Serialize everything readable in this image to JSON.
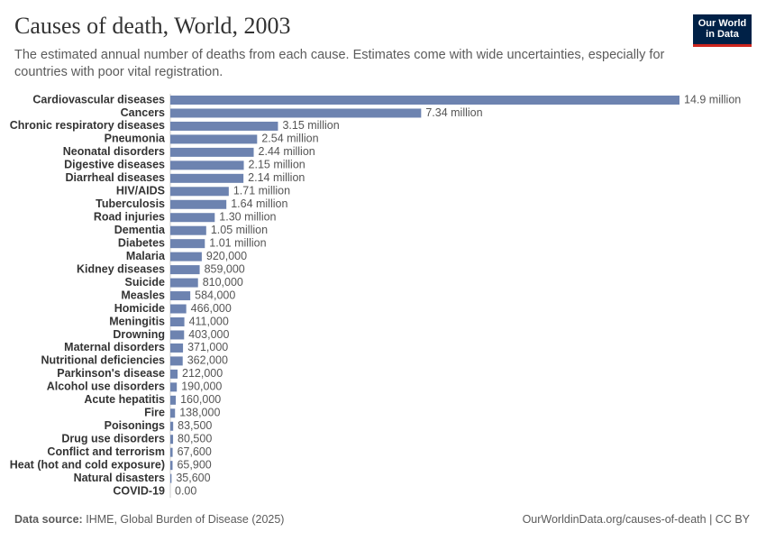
{
  "chart_data": {
    "type": "bar",
    "orientation": "horizontal",
    "title": "Causes of death, World, 2003",
    "subtitle": "The estimated annual number of deaths from each cause. Estimates come with wide uncertainties, especially for countries with poor vital registration.",
    "categories": [
      "Cardiovascular diseases",
      "Cancers",
      "Chronic respiratory diseases",
      "Pneumonia",
      "Neonatal disorders",
      "Digestive diseases",
      "Diarrheal diseases",
      "HIV/AIDS",
      "Tuberculosis",
      "Road injuries",
      "Dementia",
      "Diabetes",
      "Malaria",
      "Kidney diseases",
      "Suicide",
      "Measles",
      "Homicide",
      "Meningitis",
      "Drowning",
      "Maternal disorders",
      "Nutritional deficiencies",
      "Parkinson's disease",
      "Alcohol use disorders",
      "Acute hepatitis",
      "Fire",
      "Poisonings",
      "Drug use disorders",
      "Conflict and terrorism",
      "Heat (hot and cold exposure)",
      "Natural disasters",
      "COVID-19"
    ],
    "values": [
      14900000,
      7340000,
      3150000,
      2540000,
      2440000,
      2150000,
      2140000,
      1710000,
      1640000,
      1300000,
      1050000,
      1010000,
      920000,
      859000,
      810000,
      584000,
      466000,
      411000,
      403000,
      371000,
      362000,
      212000,
      190000,
      160000,
      138000,
      83500,
      80500,
      67600,
      65900,
      35600,
      0
    ],
    "value_labels": [
      "14.9 million",
      "7.34 million",
      "3.15 million",
      "2.54 million",
      "2.44 million",
      "2.15 million",
      "2.14 million",
      "1.71 million",
      "1.64 million",
      "1.30 million",
      "1.05 million",
      "1.01 million",
      "920,000",
      "859,000",
      "810,000",
      "584,000",
      "466,000",
      "411,000",
      "403,000",
      "371,000",
      "362,000",
      "212,000",
      "190,000",
      "160,000",
      "138,000",
      "83,500",
      "80,500",
      "67,600",
      "65,900",
      "35,600",
      "0.00"
    ],
    "color": "#6d83b0",
    "source_label": "Data source:",
    "source": "IHME, Global Burden of Disease (2025)",
    "url": "OurWorldinData.org/causes-of-death | CC BY"
  },
  "logo": {
    "line1": "Our World",
    "line2": "in Data"
  }
}
